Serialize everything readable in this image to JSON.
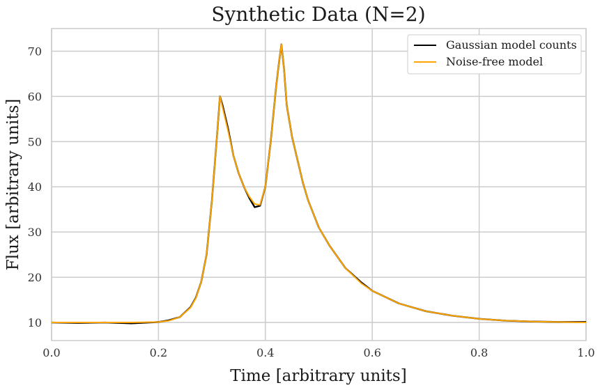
{
  "chart_data": {
    "type": "line",
    "title": "Synthetic Data (N=2)",
    "xlabel": "Time [arbitrary units]",
    "ylabel": "Flux [arbitrary units]",
    "xlim": [
      0.0,
      1.0
    ],
    "ylim": [
      6,
      75
    ],
    "xticks": [
      "0.0",
      "0.2",
      "0.4",
      "0.6",
      "0.8",
      "1.0"
    ],
    "yticks": [
      "10",
      "20",
      "30",
      "40",
      "50",
      "60",
      "70"
    ],
    "grid": true,
    "legend_position": "top-right",
    "series": [
      {
        "name": "Gaussian model counts",
        "color": "#000000",
        "x": [
          0.0,
          0.05,
          0.1,
          0.15,
          0.2,
          0.22,
          0.24,
          0.26,
          0.27,
          0.28,
          0.29,
          0.3,
          0.31,
          0.315,
          0.32,
          0.33,
          0.34,
          0.35,
          0.36,
          0.37,
          0.38,
          0.39,
          0.4,
          0.41,
          0.42,
          0.425,
          0.43,
          0.435,
          0.44,
          0.45,
          0.46,
          0.47,
          0.48,
          0.5,
          0.52,
          0.55,
          0.58,
          0.6,
          0.65,
          0.7,
          0.75,
          0.8,
          0.85,
          0.9,
          0.95,
          1.0
        ],
        "values": [
          10.0,
          9.9,
          10.0,
          9.8,
          10.1,
          10.5,
          11.2,
          13.4,
          15.5,
          19.0,
          25.0,
          37.0,
          52.0,
          60.0,
          58.0,
          53.0,
          47.0,
          43.0,
          40.0,
          37.5,
          35.5,
          35.8,
          40.0,
          50.0,
          62.0,
          67.0,
          71.5,
          66.0,
          58.0,
          51.0,
          46.0,
          41.0,
          37.0,
          31.0,
          27.0,
          22.0,
          18.8,
          17.0,
          14.2,
          12.5,
          11.5,
          10.8,
          10.4,
          10.2,
          10.1,
          10.1
        ]
      },
      {
        "name": "Noise-free model",
        "color": "#ffa500",
        "x": [
          0.0,
          0.05,
          0.1,
          0.15,
          0.2,
          0.22,
          0.24,
          0.26,
          0.27,
          0.28,
          0.29,
          0.3,
          0.31,
          0.315,
          0.32,
          0.33,
          0.34,
          0.35,
          0.36,
          0.37,
          0.38,
          0.39,
          0.4,
          0.41,
          0.42,
          0.425,
          0.43,
          0.435,
          0.44,
          0.45,
          0.46,
          0.47,
          0.48,
          0.5,
          0.52,
          0.55,
          0.58,
          0.6,
          0.65,
          0.7,
          0.75,
          0.8,
          0.85,
          0.9,
          0.95,
          1.0
        ],
        "values": [
          10.0,
          10.0,
          10.0,
          10.0,
          10.1,
          10.4,
          11.2,
          13.3,
          15.4,
          19.0,
          25.0,
          37.0,
          52.0,
          60.0,
          57.5,
          52.5,
          47.0,
          43.0,
          40.0,
          37.8,
          36.2,
          36.0,
          40.0,
          50.0,
          62.0,
          67.0,
          71.5,
          66.0,
          58.0,
          51.0,
          46.0,
          41.0,
          37.0,
          31.0,
          27.0,
          22.0,
          18.6,
          17.0,
          14.2,
          12.5,
          11.5,
          10.8,
          10.4,
          10.2,
          10.1,
          10.0
        ]
      }
    ]
  }
}
